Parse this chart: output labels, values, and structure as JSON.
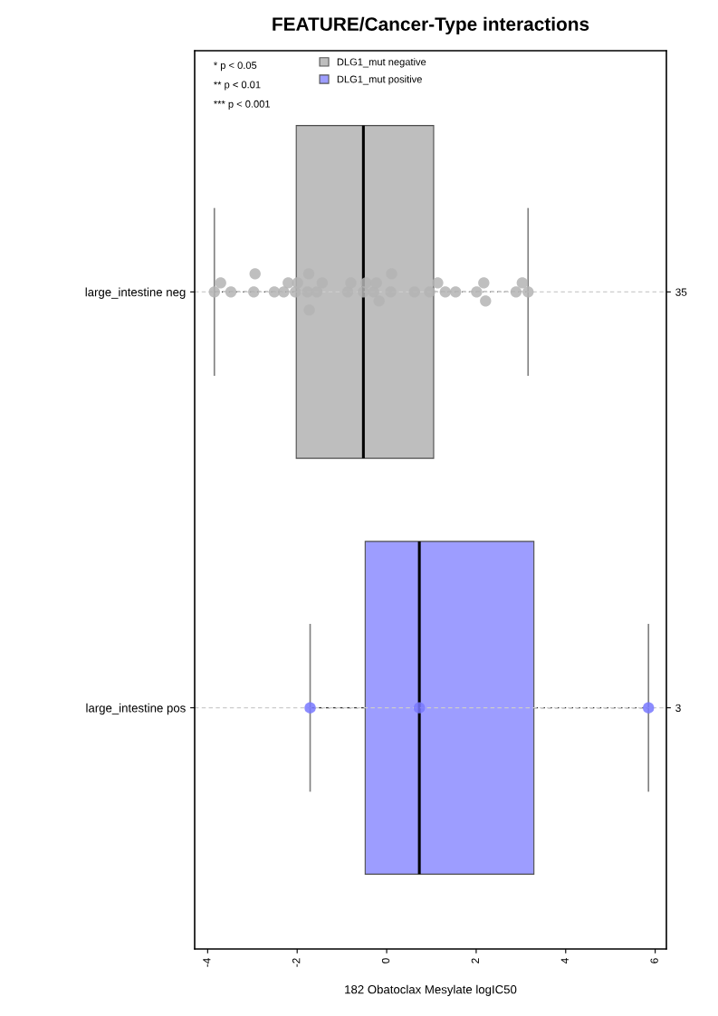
{
  "chart_data": {
    "type": "box",
    "title": "FEATURE/Cancer-Type interactions",
    "xlabel": "182 Obatoclax Mesylate logIC50",
    "orientation": "horizontal",
    "categories": [
      "large_intestine neg",
      "large_intestine pos"
    ],
    "y2_categories": [
      "35",
      "3"
    ],
    "series": [
      {
        "name": "DLG1_mut negative",
        "color": "#bebebe",
        "boxes": [
          {
            "low": -3.85,
            "q1": -2.02,
            "median": -0.52,
            "q3": 1.05,
            "high": 3.16
          },
          null
        ]
      },
      {
        "name": "DLG1_mut positive",
        "color": "#9d9dff",
        "boxes": [
          null,
          {
            "low": -1.71,
            "q1": -0.48,
            "median": 0.73,
            "q3": 3.29,
            "high": 5.85
          }
        ]
      },
      {
        "type": "scatter",
        "color": "#b4b4b4",
        "x": [
          "large_intestine neg",
          "large_intestine neg",
          "large_intestine neg",
          "large_intestine neg",
          "large_intestine neg",
          "large_intestine neg",
          "large_intestine neg",
          "large_intestine neg",
          "large_intestine neg",
          "large_intestine neg",
          "large_intestine neg",
          "large_intestine neg",
          "large_intestine neg",
          "large_intestine neg",
          "large_intestine neg",
          "large_intestine neg",
          "large_intestine neg",
          "large_intestine neg",
          "large_intestine neg",
          "large_intestine neg",
          "large_intestine neg",
          "large_intestine neg",
          "large_intestine neg",
          "large_intestine neg",
          "large_intestine neg",
          "large_intestine neg",
          "large_intestine neg",
          "large_intestine neg",
          "large_intestine neg",
          "large_intestine neg",
          "large_intestine neg",
          "large_intestine neg",
          "large_intestine neg",
          "large_intestine neg",
          "large_intestine neg"
        ],
        "values": [
          -3.85,
          -3.71,
          -3.48,
          -2.97,
          -2.94,
          -2.51,
          -2.3,
          -2.2,
          -2.04,
          -1.99,
          -1.77,
          -1.74,
          -1.73,
          -1.56,
          -1.44,
          -0.87,
          -0.8,
          -0.52,
          -0.46,
          -0.29,
          -0.23,
          -0.17,
          0.09,
          0.11,
          0.62,
          0.96,
          1.14,
          1.31,
          1.54,
          2.01,
          2.17,
          2.21,
          2.89,
          3.03,
          3.16
        ]
      },
      {
        "type": "scatter",
        "color": "#7878ff",
        "x": [
          "large_intestine pos",
          "large_intestine pos",
          "large_intestine pos"
        ],
        "values": [
          -1.71,
          0.73,
          5.85
        ]
      }
    ],
    "xlim": [
      -4.29,
      6.25
    ],
    "xticks": [
      -4,
      -2,
      0,
      2,
      4,
      6
    ],
    "grid": "y",
    "legend": "top left",
    "marker": "circle",
    "annotations": [
      "* p < 0.05",
      "** p < 0.01",
      "*** p < 0.001"
    ]
  }
}
